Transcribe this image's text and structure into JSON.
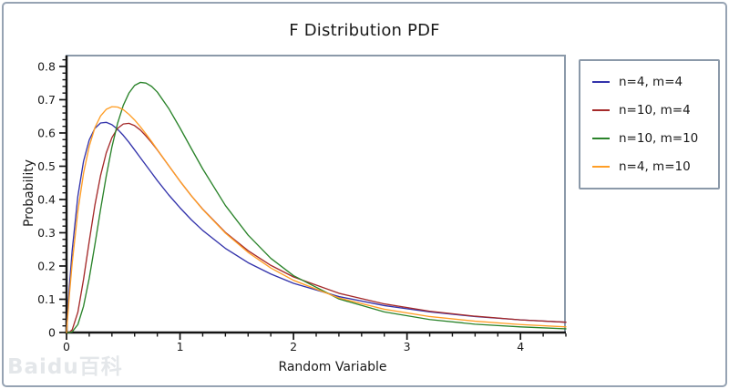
{
  "figure": {
    "background": "#ffffff",
    "outer_border_color": "#96a3b3",
    "frame_color": "#8b99a9",
    "axis_color": "#141414",
    "text_color": "#1a1a1a"
  },
  "watermark": {
    "text": "Baidu百科"
  },
  "chart_data": {
    "type": "line",
    "title": "F Distribution PDF",
    "xlabel": "Random Variable",
    "ylabel": "Probability",
    "xlim": [
      0,
      4.4
    ],
    "ylim": [
      0,
      0.83
    ],
    "grid": false,
    "legend_position": "outside-right",
    "xticks": {
      "major": [
        0,
        1,
        2,
        3,
        4
      ],
      "labels": [
        "0",
        "1",
        "2",
        "3",
        "4"
      ],
      "minor_step": 0.2
    },
    "yticks": {
      "major": [
        0,
        0.1,
        0.2,
        0.3,
        0.4,
        0.5,
        0.6,
        0.7,
        0.8
      ],
      "labels": [
        "0",
        "0.1",
        "0.2",
        "0.3",
        "0.4",
        "0.5",
        "0.6",
        "0.7",
        "0.8"
      ],
      "minor_step": 0.02,
      "minor_max": 0.82
    },
    "x": [
      0,
      0.025,
      0.05,
      0.1,
      0.15,
      0.2,
      0.25,
      0.3,
      0.35,
      0.4,
      0.45,
      0.5,
      0.55,
      0.6,
      0.65,
      0.7,
      0.75,
      0.8,
      0.9,
      1.0,
      1.1,
      1.2,
      1.4,
      1.6,
      1.8,
      2.0,
      2.4,
      2.8,
      3.2,
      3.6,
      4.0,
      4.4
    ],
    "series": [
      {
        "name": "n=4, m=4",
        "color": "#3333ab",
        "values": [
          0,
          0.136,
          0.247,
          0.41,
          0.515,
          0.579,
          0.614,
          0.63,
          0.632,
          0.625,
          0.611,
          0.593,
          0.572,
          0.549,
          0.526,
          0.503,
          0.48,
          0.457,
          0.414,
          0.375,
          0.339,
          0.307,
          0.253,
          0.21,
          0.176,
          0.148,
          0.108,
          0.081,
          0.062,
          0.048,
          0.038,
          0.031
        ]
      },
      {
        "name": "n=10, m=4",
        "color": "#a52a2a",
        "values": [
          0,
          0.001,
          0.008,
          0.061,
          0.16,
          0.274,
          0.383,
          0.472,
          0.54,
          0.586,
          0.614,
          0.627,
          0.629,
          0.622,
          0.609,
          0.591,
          0.571,
          0.549,
          0.502,
          0.455,
          0.411,
          0.371,
          0.301,
          0.246,
          0.202,
          0.167,
          0.118,
          0.086,
          0.064,
          0.049,
          0.038,
          0.031
        ]
      },
      {
        "name": "n=10, m=10",
        "color": "#2a832a",
        "values": [
          0,
          0.0002,
          0.002,
          0.024,
          0.079,
          0.163,
          0.264,
          0.37,
          0.47,
          0.558,
          0.629,
          0.683,
          0.72,
          0.743,
          0.752,
          0.75,
          0.74,
          0.723,
          0.674,
          0.615,
          0.553,
          0.492,
          0.382,
          0.293,
          0.223,
          0.171,
          0.101,
          0.062,
          0.039,
          0.025,
          0.017,
          0.011
        ]
      },
      {
        "name": "n=4, m=10",
        "color": "#ff9e26",
        "values": [
          0,
          0.112,
          0.209,
          0.365,
          0.479,
          0.56,
          0.616,
          0.651,
          0.671,
          0.679,
          0.678,
          0.67,
          0.656,
          0.639,
          0.619,
          0.597,
          0.574,
          0.55,
          0.502,
          0.455,
          0.411,
          0.37,
          0.299,
          0.241,
          0.194,
          0.157,
          0.104,
          0.07,
          0.048,
          0.034,
          0.024,
          0.017
        ]
      }
    ]
  }
}
